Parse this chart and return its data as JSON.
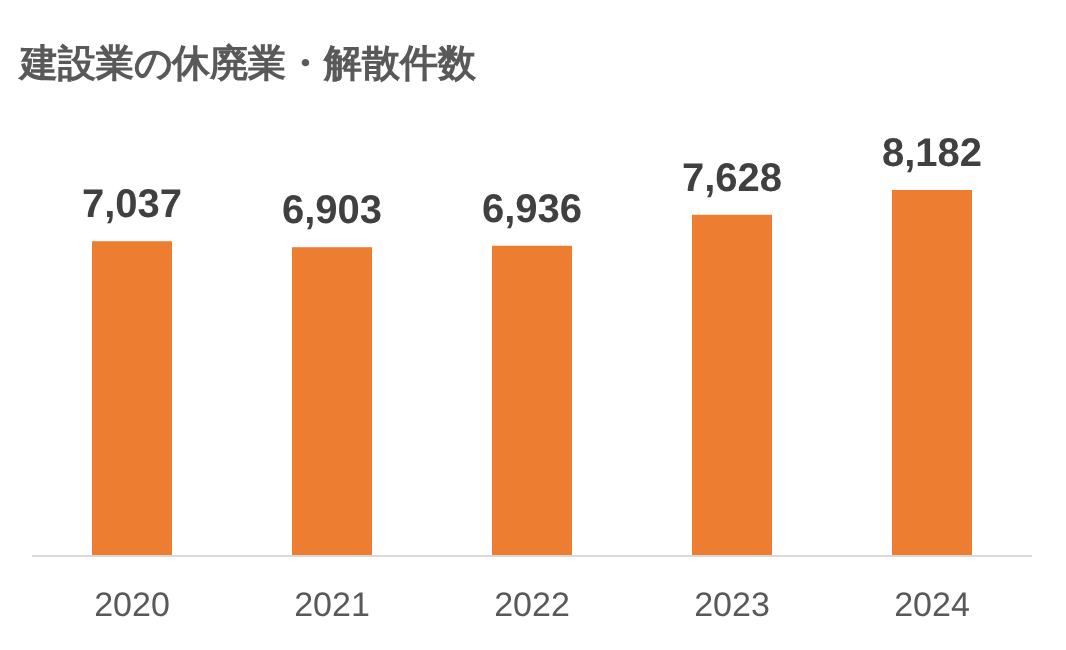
{
  "chart_data": {
    "type": "bar",
    "title": "建設業の休廃業・解散件数",
    "categories": [
      "2020",
      "2021",
      "2022",
      "2023",
      "2024"
    ],
    "values": [
      7037,
      6903,
      6936,
      7628,
      8182
    ],
    "value_labels": [
      "7,037",
      "6,903",
      "6,936",
      "7,628",
      "8,182"
    ],
    "color": "#ed7d31"
  }
}
